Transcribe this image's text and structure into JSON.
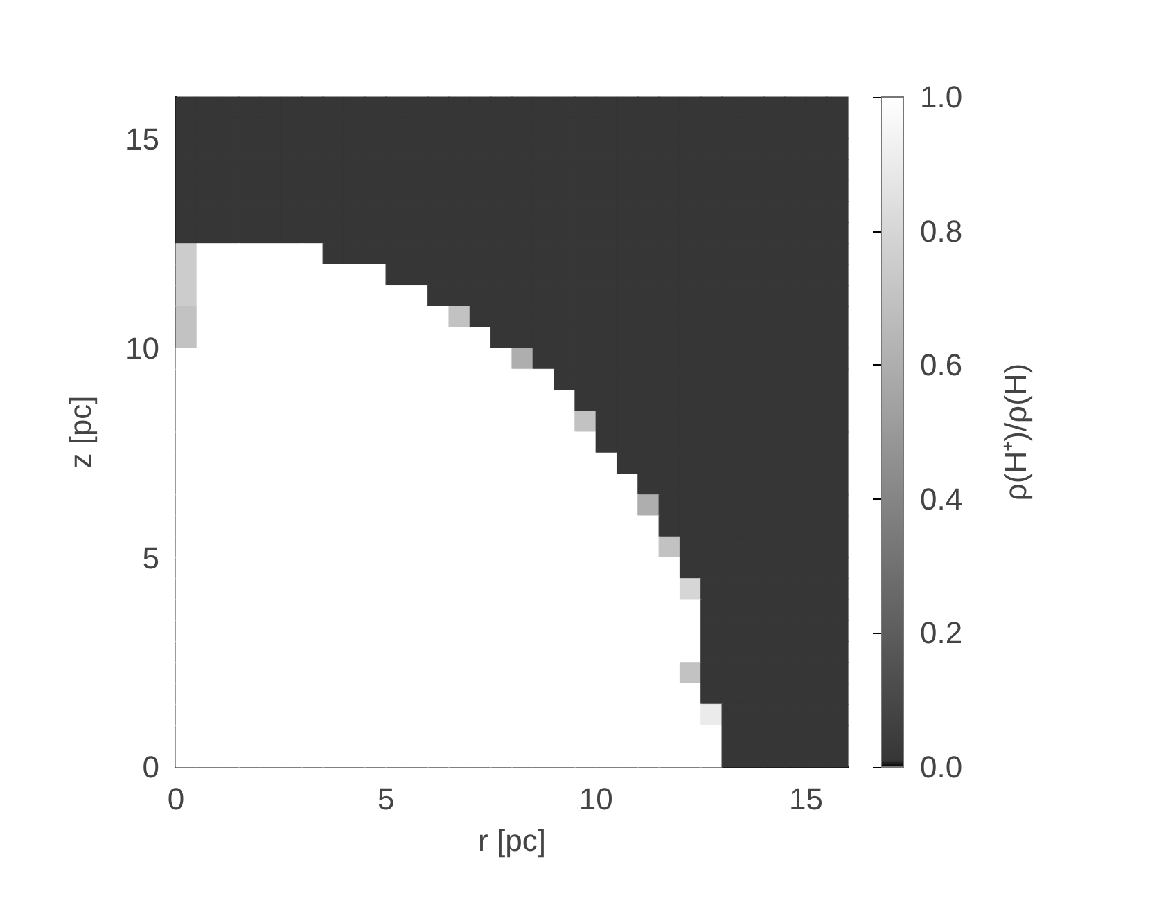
{
  "chart_data": {
    "type": "heatmap",
    "xlabel": "r [pc]",
    "ylabel": "z [pc]",
    "clabel": "ρ(H⁺)/ρ(H)",
    "xlim": [
      0,
      16
    ],
    "ylim": [
      0,
      16
    ],
    "xticks": [
      0,
      5,
      10,
      15
    ],
    "yticks": [
      0,
      5,
      10,
      15
    ],
    "clim": [
      0,
      1
    ],
    "cticks": [
      {
        "value": 0,
        "label": "0.0"
      },
      {
        "value": 0.2,
        "label": "0.2"
      },
      {
        "value": 0.4,
        "label": "0.4"
      },
      {
        "value": 0.6,
        "label": "0.6"
      },
      {
        "value": 0.8,
        "label": "0.8"
      },
      {
        "value": 1,
        "label": "1.0"
      }
    ],
    "cells": [
      [
        0.01,
        0.01,
        0.01,
        0.01,
        0.01,
        0.01,
        0.01,
        0.01,
        0.01,
        0.01,
        0.01,
        0.01,
        0.01,
        0.01,
        0.01,
        0.01,
        0.01,
        0.01,
        0.01,
        0.01,
        0.01,
        0.01,
        0.01,
        0.01,
        0.01,
        0.01,
        0.01,
        0.01,
        0.01,
        0.01,
        0.01,
        0.01
      ],
      [
        0.01,
        0.01,
        0.01,
        0.01,
        0.01,
        0.01,
        0.01,
        0.01,
        0.01,
        0.01,
        0.01,
        0.01,
        0.01,
        0.01,
        0.01,
        0.01,
        0.01,
        0.01,
        0.01,
        0.01,
        0.01,
        0.01,
        0.01,
        0.01,
        0.01,
        0.01,
        0.01,
        0.01,
        0.01,
        0.01,
        0.01,
        0.01
      ],
      [
        0.01,
        0.01,
        0.01,
        0.01,
        0.01,
        0.01,
        0.01,
        0.01,
        0.01,
        0.01,
        0.01,
        0.01,
        0.01,
        0.01,
        0.01,
        0.01,
        0.01,
        0.01,
        0.01,
        0.01,
        0.01,
        0.01,
        0.01,
        0.01,
        0.01,
        0.01,
        0.01,
        0.01,
        0.01,
        0.01,
        0.01,
        0.01
      ],
      [
        0.01,
        0.01,
        0.01,
        0.01,
        0.01,
        0.01,
        0.01,
        0.01,
        0.01,
        0.01,
        0.01,
        0.01,
        0.01,
        0.01,
        0.01,
        0.01,
        0.01,
        0.01,
        0.01,
        0.01,
        0.01,
        0.01,
        0.01,
        0.01,
        0.01,
        0.01,
        0.01,
        0.01,
        0.01,
        0.01,
        0.01,
        0.01
      ],
      [
        0.01,
        0.01,
        0.01,
        0.01,
        0.01,
        0.01,
        0.01,
        0.01,
        0.01,
        0.01,
        0.01,
        0.01,
        0.01,
        0.01,
        0.01,
        0.01,
        0.01,
        0.01,
        0.01,
        0.01,
        0.01,
        0.01,
        0.01,
        0.01,
        0.01,
        0.01,
        0.01,
        0.01,
        0.01,
        0.01,
        0.01,
        0.01
      ],
      [
        0.01,
        0.01,
        0.01,
        0.01,
        0.01,
        0.01,
        0.01,
        0.01,
        0.01,
        0.01,
        0.01,
        0.01,
        0.01,
        0.01,
        0.01,
        0.01,
        0.01,
        0.01,
        0.01,
        0.01,
        0.01,
        0.01,
        0.01,
        0.01,
        0.01,
        0.01,
        0.01,
        0.01,
        0.01,
        0.01,
        0.01,
        0.01
      ],
      [
        0.01,
        0.01,
        0.01,
        0.01,
        0.01,
        0.01,
        0.01,
        0.01,
        0.01,
        0.01,
        0.01,
        0.01,
        0.01,
        0.01,
        0.01,
        0.01,
        0.01,
        0.01,
        0.01,
        0.01,
        0.01,
        0.01,
        0.01,
        0.01,
        0.01,
        0.01,
        0.01,
        0.01,
        0.01,
        0.01,
        0.01,
        0.01
      ],
      [
        0.75,
        1,
        1,
        1,
        1,
        1,
        1,
        0.01,
        0.01,
        0.01,
        0.01,
        0.01,
        0.01,
        0.01,
        0.01,
        0.01,
        0.01,
        0.01,
        0.01,
        0.01,
        0.01,
        0.01,
        0.01,
        0.01,
        0.01,
        0.01,
        0.01,
        0.01,
        0.01,
        0.01,
        0.01,
        0.01
      ],
      [
        0.75,
        1,
        1,
        1,
        1,
        1,
        1,
        1,
        1,
        1,
        0.01,
        0.01,
        0.01,
        0.01,
        0.01,
        0.01,
        0.01,
        0.01,
        0.01,
        0.01,
        0.01,
        0.01,
        0.01,
        0.01,
        0.01,
        0.01,
        0.01,
        0.01,
        0.01,
        0.01,
        0.01,
        0.01
      ],
      [
        0.75,
        1,
        1,
        1,
        1,
        1,
        1,
        1,
        1,
        1,
        1,
        1,
        0.01,
        0.01,
        0.01,
        0.01,
        0.01,
        0.01,
        0.01,
        0.01,
        0.01,
        0.01,
        0.01,
        0.01,
        0.01,
        0.01,
        0.01,
        0.01,
        0.01,
        0.01,
        0.01,
        0.01
      ],
      [
        0.7,
        1,
        1,
        1,
        1,
        1,
        1,
        1,
        1,
        1,
        1,
        1,
        1,
        0.7,
        0.01,
        0.01,
        0.01,
        0.01,
        0.01,
        0.01,
        0.01,
        0.01,
        0.01,
        0.01,
        0.01,
        0.01,
        0.01,
        0.01,
        0.01,
        0.01,
        0.01,
        0.01
      ],
      [
        0.7,
        1,
        1,
        1,
        1,
        1,
        1,
        1,
        1,
        1,
        1,
        1,
        1,
        1,
        1,
        0.01,
        0.01,
        0.01,
        0.01,
        0.01,
        0.01,
        0.01,
        0.01,
        0.01,
        0.01,
        0.01,
        0.01,
        0.01,
        0.01,
        0.01,
        0.01,
        0.01
      ],
      [
        1,
        1,
        1,
        1,
        1,
        1,
        1,
        1,
        1,
        1,
        1,
        1,
        1,
        1,
        1,
        1,
        0.6,
        0.01,
        0.01,
        0.01,
        0.01,
        0.01,
        0.01,
        0.01,
        0.01,
        0.01,
        0.01,
        0.01,
        0.01,
        0.01,
        0.01,
        0.01
      ],
      [
        1,
        1,
        1,
        1,
        1,
        1,
        1,
        1,
        1,
        1,
        1,
        1,
        1,
        1,
        1,
        1,
        1,
        1,
        0.01,
        0.01,
        0.01,
        0.01,
        0.01,
        0.01,
        0.01,
        0.01,
        0.01,
        0.01,
        0.01,
        0.01,
        0.01,
        0.01
      ],
      [
        1,
        1,
        1,
        1,
        1,
        1,
        1,
        1,
        1,
        1,
        1,
        1,
        1,
        1,
        1,
        1,
        1,
        1,
        1,
        0.01,
        0.01,
        0.01,
        0.01,
        0.01,
        0.01,
        0.01,
        0.01,
        0.01,
        0.01,
        0.01,
        0.01,
        0.01
      ],
      [
        1,
        1,
        1,
        1,
        1,
        1,
        1,
        1,
        1,
        1,
        1,
        1,
        1,
        1,
        1,
        1,
        1,
        1,
        1,
        0.7,
        0.01,
        0.01,
        0.01,
        0.01,
        0.01,
        0.01,
        0.01,
        0.01,
        0.01,
        0.01,
        0.01,
        0.01
      ],
      [
        1,
        1,
        1,
        1,
        1,
        1,
        1,
        1,
        1,
        1,
        1,
        1,
        1,
        1,
        1,
        1,
        1,
        1,
        1,
        1,
        0.01,
        0.01,
        0.01,
        0.01,
        0.01,
        0.01,
        0.01,
        0.01,
        0.01,
        0.01,
        0.01,
        0.01
      ],
      [
        1,
        1,
        1,
        1,
        1,
        1,
        1,
        1,
        1,
        1,
        1,
        1,
        1,
        1,
        1,
        1,
        1,
        1,
        1,
        1,
        1,
        0.01,
        0.01,
        0.01,
        0.01,
        0.01,
        0.01,
        0.01,
        0.01,
        0.01,
        0.01,
        0.01
      ],
      [
        1,
        1,
        1,
        1,
        1,
        1,
        1,
        1,
        1,
        1,
        1,
        1,
        1,
        1,
        1,
        1,
        1,
        1,
        1,
        1,
        1,
        1,
        0.01,
        0.01,
        0.01,
        0.01,
        0.01,
        0.01,
        0.01,
        0.01,
        0.01,
        0.01
      ],
      [
        1,
        1,
        1,
        1,
        1,
        1,
        1,
        1,
        1,
        1,
        1,
        1,
        1,
        1,
        1,
        1,
        1,
        1,
        1,
        1,
        1,
        1,
        0.6,
        0.01,
        0.01,
        0.01,
        0.01,
        0.01,
        0.01,
        0.01,
        0.01,
        0.01
      ],
      [
        1,
        1,
        1,
        1,
        1,
        1,
        1,
        1,
        1,
        1,
        1,
        1,
        1,
        1,
        1,
        1,
        1,
        1,
        1,
        1,
        1,
        1,
        1,
        0.01,
        0.01,
        0.01,
        0.01,
        0.01,
        0.01,
        0.01,
        0.01,
        0.01
      ],
      [
        1,
        1,
        1,
        1,
        1,
        1,
        1,
        1,
        1,
        1,
        1,
        1,
        1,
        1,
        1,
        1,
        1,
        1,
        1,
        1,
        1,
        1,
        1,
        0.7,
        0.01,
        0.01,
        0.01,
        0.01,
        0.01,
        0.01,
        0.01,
        0.01
      ],
      [
        1,
        1,
        1,
        1,
        1,
        1,
        1,
        1,
        1,
        1,
        1,
        1,
        1,
        1,
        1,
        1,
        1,
        1,
        1,
        1,
        1,
        1,
        1,
        1,
        0.01,
        0.01,
        0.01,
        0.01,
        0.01,
        0.01,
        0.01,
        0.01
      ],
      [
        1,
        1,
        1,
        1,
        1,
        1,
        1,
        1,
        1,
        1,
        1,
        1,
        1,
        1,
        1,
        1,
        1,
        1,
        1,
        1,
        1,
        1,
        1,
        1,
        0.8,
        0.01,
        0.01,
        0.01,
        0.01,
        0.01,
        0.01,
        0.01
      ],
      [
        1,
        1,
        1,
        1,
        1,
        1,
        1,
        1,
        1,
        1,
        1,
        1,
        1,
        1,
        1,
        1,
        1,
        1,
        1,
        1,
        1,
        1,
        1,
        1,
        1,
        0.01,
        0.01,
        0.01,
        0.01,
        0.01,
        0.01,
        0.01
      ],
      [
        1,
        1,
        1,
        1,
        1,
        1,
        1,
        1,
        1,
        1,
        1,
        1,
        1,
        1,
        1,
        1,
        1,
        1,
        1,
        1,
        1,
        1,
        1,
        1,
        1,
        0.01,
        0.01,
        0.01,
        0.01,
        0.01,
        0.01,
        0.01
      ],
      [
        1,
        1,
        1,
        1,
        1,
        1,
        1,
        1,
        1,
        1,
        1,
        1,
        1,
        1,
        1,
        1,
        1,
        1,
        1,
        1,
        1,
        1,
        1,
        1,
        1,
        0.01,
        0.01,
        0.01,
        0.01,
        0.01,
        0.01,
        0.01
      ],
      [
        1,
        1,
        1,
        1,
        1,
        1,
        1,
        1,
        1,
        1,
        1,
        1,
        1,
        1,
        1,
        1,
        1,
        1,
        1,
        1,
        1,
        1,
        1,
        1,
        0.7,
        0.01,
        0.01,
        0.01,
        0.01,
        0.01,
        0.01,
        0.01
      ],
      [
        1,
        1,
        1,
        1,
        1,
        1,
        1,
        1,
        1,
        1,
        1,
        1,
        1,
        1,
        1,
        1,
        1,
        1,
        1,
        1,
        1,
        1,
        1,
        1,
        1,
        0.01,
        0.01,
        0.01,
        0.01,
        0.01,
        0.01,
        0.01
      ],
      [
        1,
        1,
        1,
        1,
        1,
        1,
        1,
        1,
        1,
        1,
        1,
        1,
        1,
        1,
        1,
        1,
        1,
        1,
        1,
        1,
        1,
        1,
        1,
        1,
        1,
        0.9,
        0.01,
        0.01,
        0.01,
        0.01,
        0.01,
        0.01
      ],
      [
        1,
        1,
        1,
        1,
        1,
        1,
        1,
        1,
        1,
        1,
        1,
        1,
        1,
        1,
        1,
        1,
        1,
        1,
        1,
        1,
        1,
        1,
        1,
        1,
        1,
        1,
        0.01,
        0.01,
        0.01,
        0.01,
        0.01,
        0.01
      ],
      [
        1,
        1,
        1,
        1,
        1,
        1,
        1,
        1,
        1,
        1,
        1,
        1,
        1,
        1,
        1,
        1,
        1,
        1,
        1,
        1,
        1,
        1,
        1,
        1,
        1,
        1,
        0.01,
        0.01,
        0.01,
        0.01,
        0.01,
        0.01
      ]
    ]
  }
}
